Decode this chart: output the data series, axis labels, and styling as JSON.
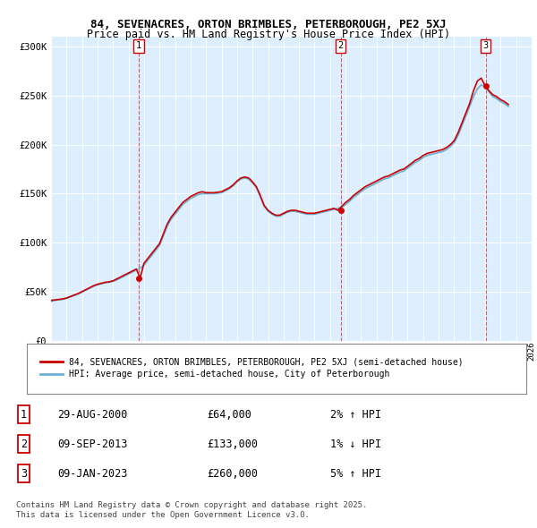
{
  "title": "84, SEVENACRES, ORTON BRIMBLES, PETERBOROUGH, PE2 5XJ",
  "subtitle": "Price paid vs. HM Land Registry's House Price Index (HPI)",
  "legend_line1": "84, SEVENACRES, ORTON BRIMBLES, PETERBOROUGH, PE2 5XJ (semi-detached house)",
  "legend_line2": "HPI: Average price, semi-detached house, City of Peterborough",
  "transactions": [
    {
      "num": 1,
      "date": "29-AUG-2000",
      "price": "£64,000",
      "change": "2% ↑ HPI"
    },
    {
      "num": 2,
      "date": "09-SEP-2013",
      "price": "£133,000",
      "change": "1% ↓ HPI"
    },
    {
      "num": 3,
      "date": "09-JAN-2023",
      "price": "£260,000",
      "change": "5% ↑ HPI"
    }
  ],
  "footnote": "Contains HM Land Registry data © Crown copyright and database right 2025.\nThis data is licensed under the Open Government Licence v3.0.",
  "hpi_color": "#6ab0d4",
  "price_color": "#cc0000",
  "marker_color": "#cc0000",
  "background_color": "#ddeeff",
  "ylim": [
    0,
    310000
  ],
  "xlim_start": 1995,
  "xlim_end": 2026,
  "transaction_years": [
    2000.66,
    2013.69,
    2023.03
  ],
  "transaction_prices": [
    64000,
    133000,
    260000
  ],
  "hpi_years": [
    1995.0,
    1995.25,
    1995.5,
    1995.75,
    1996.0,
    1996.25,
    1996.5,
    1996.75,
    1997.0,
    1997.25,
    1997.5,
    1997.75,
    1998.0,
    1998.25,
    1998.5,
    1998.75,
    1999.0,
    1999.25,
    1999.5,
    1999.75,
    2000.0,
    2000.25,
    2000.5,
    2000.75,
    2001.0,
    2001.25,
    2001.5,
    2001.75,
    2002.0,
    2002.25,
    2002.5,
    2002.75,
    2003.0,
    2003.25,
    2003.5,
    2003.75,
    2004.0,
    2004.25,
    2004.5,
    2004.75,
    2005.0,
    2005.25,
    2005.5,
    2005.75,
    2006.0,
    2006.25,
    2006.5,
    2006.75,
    2007.0,
    2007.25,
    2007.5,
    2007.75,
    2008.0,
    2008.25,
    2008.5,
    2008.75,
    2009.0,
    2009.25,
    2009.5,
    2009.75,
    2010.0,
    2010.25,
    2010.5,
    2010.75,
    2011.0,
    2011.25,
    2011.5,
    2011.75,
    2012.0,
    2012.25,
    2012.5,
    2012.75,
    2013.0,
    2013.25,
    2013.5,
    2013.75,
    2014.0,
    2014.25,
    2014.5,
    2014.75,
    2015.0,
    2015.25,
    2015.5,
    2015.75,
    2016.0,
    2016.25,
    2016.5,
    2016.75,
    2017.0,
    2017.25,
    2017.5,
    2017.75,
    2018.0,
    2018.25,
    2018.5,
    2018.75,
    2019.0,
    2019.25,
    2019.5,
    2019.75,
    2020.0,
    2020.25,
    2020.5,
    2020.75,
    2021.0,
    2021.25,
    2021.5,
    2021.75,
    2022.0,
    2022.25,
    2022.5,
    2022.75,
    2023.0,
    2023.25,
    2023.5,
    2023.75,
    2024.0,
    2024.25,
    2024.5
  ],
  "hpi_values": [
    40000,
    41000,
    41500,
    42000,
    43000,
    44500,
    46000,
    47500,
    49500,
    51500,
    53500,
    55500,
    57000,
    58000,
    59000,
    59500,
    60500,
    62000,
    64000,
    66000,
    68000,
    70000,
    72000,
    74000,
    77000,
    82000,
    87000,
    92000,
    97000,
    107000,
    117000,
    124000,
    129000,
    134000,
    139000,
    142000,
    145000,
    147000,
    149000,
    150000,
    150000,
    150000,
    150000,
    150500,
    151000,
    153000,
    155000,
    158000,
    162000,
    165000,
    166000,
    165000,
    161000,
    156000,
    147000,
    137000,
    132000,
    129000,
    127000,
    127000,
    129000,
    131000,
    132000,
    132000,
    131000,
    130000,
    129000,
    129000,
    129000,
    130000,
    131000,
    132000,
    133000,
    134000,
    135000,
    136000,
    139000,
    142000,
    146000,
    149000,
    152000,
    155000,
    157000,
    159000,
    161000,
    163000,
    165000,
    166000,
    168000,
    170000,
    172000,
    173000,
    176000,
    179000,
    182000,
    184000,
    187000,
    189000,
    190000,
    191000,
    192000,
    193000,
    195000,
    198000,
    202000,
    209000,
    219000,
    229000,
    239000,
    249000,
    257000,
    261000,
    259000,
    254000,
    249000,
    247000,
    244000,
    242000,
    239000
  ],
  "price_years": [
    1995.0,
    1995.25,
    1995.5,
    1995.75,
    1996.0,
    1996.25,
    1996.5,
    1996.75,
    1997.0,
    1997.25,
    1997.5,
    1997.75,
    1998.0,
    1998.25,
    1998.5,
    1998.75,
    1999.0,
    1999.25,
    1999.5,
    1999.75,
    2000.0,
    2000.25,
    2000.5,
    2000.75,
    2001.0,
    2001.25,
    2001.5,
    2001.75,
    2002.0,
    2002.25,
    2002.5,
    2002.75,
    2003.0,
    2003.25,
    2003.5,
    2003.75,
    2004.0,
    2004.25,
    2004.5,
    2004.75,
    2005.0,
    2005.25,
    2005.5,
    2005.75,
    2006.0,
    2006.25,
    2006.5,
    2006.75,
    2007.0,
    2007.25,
    2007.5,
    2007.75,
    2008.0,
    2008.25,
    2008.5,
    2008.75,
    2009.0,
    2009.25,
    2009.5,
    2009.75,
    2010.0,
    2010.25,
    2010.5,
    2010.75,
    2011.0,
    2011.25,
    2011.5,
    2011.75,
    2012.0,
    2012.25,
    2012.5,
    2012.75,
    2013.0,
    2013.25,
    2013.5,
    2013.75,
    2014.0,
    2014.25,
    2014.5,
    2014.75,
    2015.0,
    2015.25,
    2015.5,
    2015.75,
    2016.0,
    2016.25,
    2016.5,
    2016.75,
    2017.0,
    2017.25,
    2017.5,
    2017.75,
    2018.0,
    2018.25,
    2018.5,
    2018.75,
    2019.0,
    2019.25,
    2019.5,
    2019.75,
    2020.0,
    2020.25,
    2020.5,
    2020.75,
    2021.0,
    2021.25,
    2021.5,
    2021.75,
    2022.0,
    2022.25,
    2022.5,
    2022.75,
    2023.0,
    2023.25,
    2023.5,
    2023.75,
    2024.0,
    2024.25,
    2024.5
  ],
  "price_values": [
    41000,
    41500,
    42000,
    42500,
    43500,
    45000,
    46500,
    48000,
    50000,
    52000,
    54000,
    56000,
    57500,
    58500,
    59500,
    60000,
    61000,
    63000,
    65000,
    67000,
    69000,
    71000,
    73000,
    64000,
    79000,
    84000,
    89000,
    94000,
    99000,
    109000,
    119000,
    126000,
    131000,
    136000,
    141000,
    144000,
    147000,
    149000,
    151000,
    152000,
    151000,
    151000,
    151000,
    151500,
    152000,
    154000,
    156000,
    159000,
    163000,
    166000,
    167000,
    166000,
    162000,
    157000,
    148000,
    138000,
    133000,
    130000,
    128000,
    128000,
    130000,
    132000,
    133000,
    133000,
    132000,
    131000,
    130000,
    130000,
    130000,
    131000,
    132000,
    133000,
    134000,
    135000,
    133000,
    137000,
    141000,
    144000,
    148000,
    151000,
    154000,
    157000,
    159000,
    161000,
    163000,
    165000,
    167000,
    168000,
    170000,
    172000,
    174000,
    175000,
    178000,
    181000,
    184000,
    186000,
    189000,
    191000,
    192000,
    193000,
    194000,
    195000,
    197000,
    200000,
    204000,
    212000,
    222000,
    232000,
    242000,
    255000,
    265000,
    268000,
    260000,
    255000,
    251000,
    249000,
    246000,
    244000,
    241000
  ]
}
